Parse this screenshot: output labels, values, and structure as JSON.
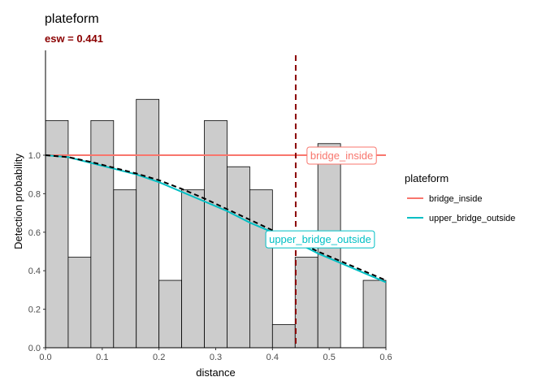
{
  "chart_data": {
    "type": "bar",
    "title": "plateform",
    "subtitle": "esw = 0.441",
    "xlabel": "distance",
    "ylabel": "Detection probability",
    "xlim": [
      0,
      0.6
    ],
    "ylim": [
      0,
      1.0
    ],
    "x_ticks": [
      "0.0",
      "0.1",
      "0.2",
      "0.3",
      "0.4",
      "0.5",
      "0.6"
    ],
    "y_ticks": [
      "0.0",
      "0.2",
      "0.4",
      "0.6",
      "0.8",
      "1.0"
    ],
    "grid": false,
    "bin_width": 0.04,
    "histogram": [
      {
        "x0": 0.0,
        "x1": 0.04,
        "value": 1.18
      },
      {
        "x0": 0.04,
        "x1": 0.08,
        "value": 0.47
      },
      {
        "x0": 0.08,
        "x1": 0.12,
        "value": 1.18
      },
      {
        "x0": 0.12,
        "x1": 0.16,
        "value": 0.82
      },
      {
        "x0": 0.16,
        "x1": 0.2,
        "value": 1.29
      },
      {
        "x0": 0.2,
        "x1": 0.24,
        "value": 0.35
      },
      {
        "x0": 0.24,
        "x1": 0.28,
        "value": 0.82
      },
      {
        "x0": 0.28,
        "x1": 0.32,
        "value": 1.18
      },
      {
        "x0": 0.32,
        "x1": 0.36,
        "value": 0.94
      },
      {
        "x0": 0.36,
        "x1": 0.4,
        "value": 0.82
      },
      {
        "x0": 0.4,
        "x1": 0.44,
        "value": 0.12
      },
      {
        "x0": 0.44,
        "x1": 0.48,
        "value": 0.47
      },
      {
        "x0": 0.48,
        "x1": 0.52,
        "value": 1.06
      },
      {
        "x0": 0.52,
        "x1": 0.56,
        "value": 0.0
      },
      {
        "x0": 0.56,
        "x1": 0.6,
        "value": 0.35
      }
    ],
    "esw": 0.441,
    "legend": {
      "title": "plateform",
      "position": "right"
    },
    "series": [
      {
        "name": "bridge_inside",
        "color": "#F8766D",
        "x": [
          0.0,
          0.6
        ],
        "y": [
          1.0,
          1.0
        ]
      },
      {
        "name": "upper_bridge_outside",
        "color": "#00BFC4",
        "x": [
          0.0,
          0.04,
          0.08,
          0.12,
          0.16,
          0.2,
          0.24,
          0.28,
          0.32,
          0.36,
          0.4,
          0.44,
          0.48,
          0.52,
          0.56,
          0.6
        ],
        "y": [
          1.0,
          0.99,
          0.96,
          0.93,
          0.9,
          0.86,
          0.81,
          0.76,
          0.71,
          0.65,
          0.6,
          0.55,
          0.49,
          0.44,
          0.39,
          0.34
        ]
      }
    ],
    "average_curve": {
      "style": "dashed",
      "color": "#000000",
      "x": [
        0.0,
        0.04,
        0.08,
        0.12,
        0.16,
        0.2,
        0.24,
        0.28,
        0.32,
        0.36,
        0.4,
        0.44,
        0.48,
        0.52,
        0.56,
        0.6
      ],
      "y": [
        1.0,
        0.99,
        0.965,
        0.935,
        0.905,
        0.87,
        0.825,
        0.775,
        0.72,
        0.665,
        0.61,
        0.56,
        0.5,
        0.45,
        0.4,
        0.35
      ]
    },
    "curve_labels": [
      {
        "text": "bridge_inside",
        "color": "#F8766D",
        "x": 0.522,
        "y": 1.0
      },
      {
        "text": "upper_bridge_outside",
        "color": "#00BFC4",
        "x": 0.484,
        "y": 0.565
      }
    ],
    "esw_line_color": "#8B0000"
  }
}
